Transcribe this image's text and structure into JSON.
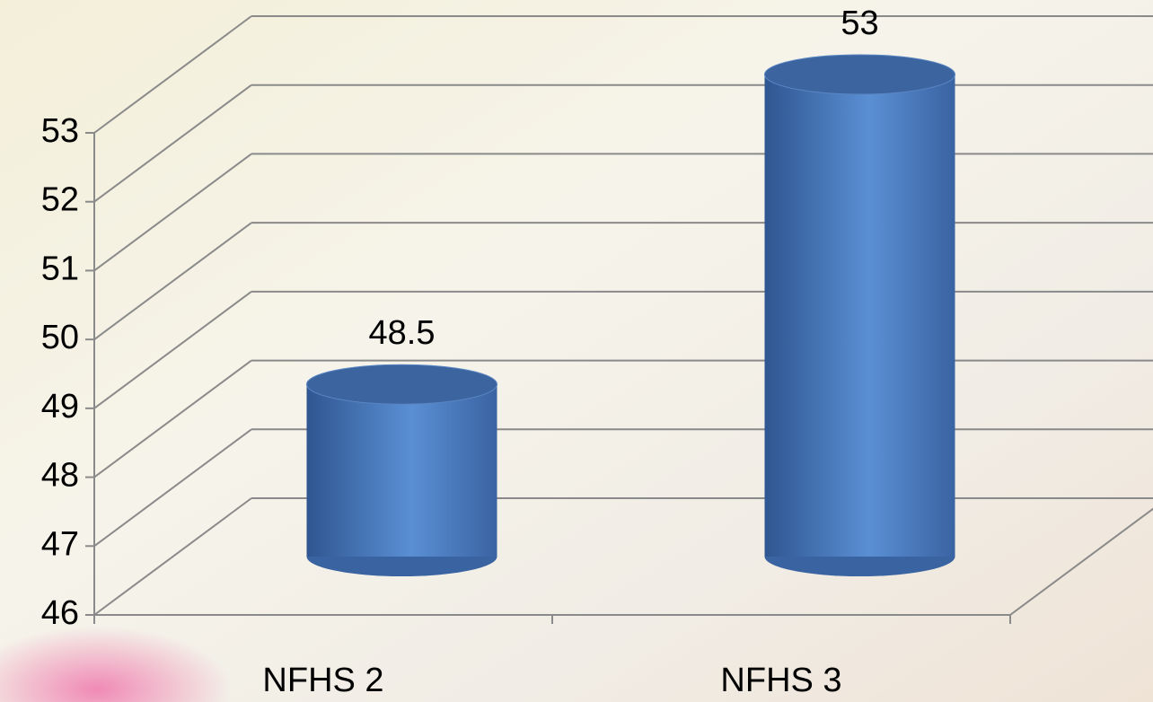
{
  "chart_data": {
    "type": "bar",
    "categories": [
      "NFHS 2",
      "NFHS 3"
    ],
    "values": [
      48.5,
      53
    ],
    "color": "#4a7cc0",
    "ylim": [
      46,
      53
    ],
    "yticks": [
      46,
      47,
      48,
      49,
      50,
      51,
      52,
      53
    ],
    "grid": true
  }
}
